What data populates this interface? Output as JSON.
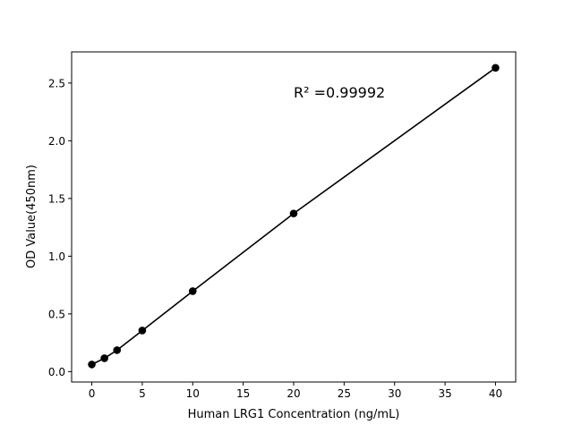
{
  "chart_data": {
    "type": "scatter",
    "title": "",
    "xlabel": "Human LRG1 Concentration (ng/mL)",
    "ylabel": "OD Value(450nm)",
    "xlim": [
      -2,
      42
    ],
    "ylim": [
      -0.09,
      2.77
    ],
    "xticks": [
      0,
      5,
      10,
      15,
      20,
      25,
      30,
      35,
      40
    ],
    "yticks": [
      0.0,
      0.5,
      1.0,
      1.5,
      2.0,
      2.5
    ],
    "xtick_labels": [
      "0",
      "5",
      "10",
      "15",
      "20",
      "25",
      "30",
      "35",
      "40"
    ],
    "ytick_labels": [
      "0.0",
      "0.5",
      "1.0",
      "1.5",
      "2.0",
      "2.5"
    ],
    "grid": false,
    "series": [
      {
        "x": [
          0,
          1.25,
          2.5,
          5,
          10,
          20,
          40
        ],
        "y": [
          0.062,
          0.116,
          0.186,
          0.356,
          0.697,
          1.37,
          2.632
        ],
        "color": "#000000",
        "marker": "circle",
        "line": true
      }
    ],
    "annotation": "R² =0.99992"
  }
}
